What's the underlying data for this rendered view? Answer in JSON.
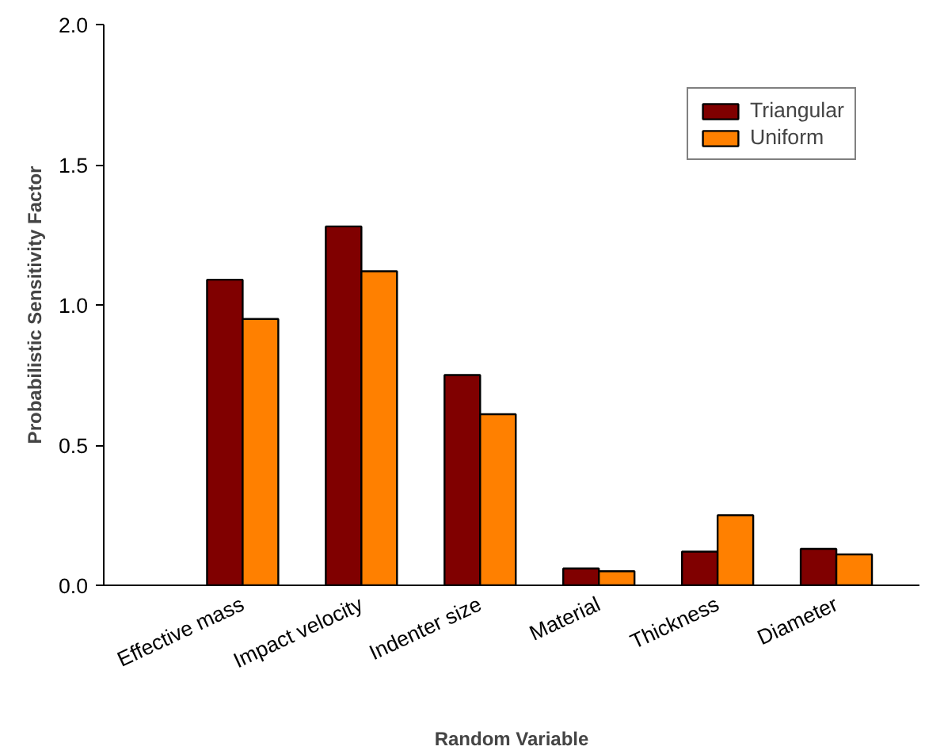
{
  "chart_data": {
    "type": "bar",
    "xlabel": "Random Variable",
    "ylabel": "Probabilistic Sensitivity Factor",
    "categories": [
      "Effective mass",
      "Impact velocity",
      "Indenter size",
      "Material",
      "Thickness",
      "Diameter"
    ],
    "series": [
      {
        "name": "Triangular",
        "color": "#800000",
        "values": [
          1.09,
          1.28,
          0.75,
          0.06,
          0.12,
          0.13
        ]
      },
      {
        "name": "Uniform",
        "color": "#ff8000",
        "values": [
          0.95,
          1.12,
          0.61,
          0.05,
          0.25,
          0.11
        ]
      }
    ],
    "ylim": [
      0,
      2.0
    ],
    "yticks": [
      {
        "value": 0,
        "label": "0.0"
      },
      {
        "value": 0.5,
        "label": "0.5"
      },
      {
        "value": 1.0,
        "label": "1.0"
      },
      {
        "value": 1.5,
        "label": "1.5"
      },
      {
        "value": 2.0,
        "label": "2.0"
      }
    ],
    "legend": "top right",
    "grid": false
  }
}
